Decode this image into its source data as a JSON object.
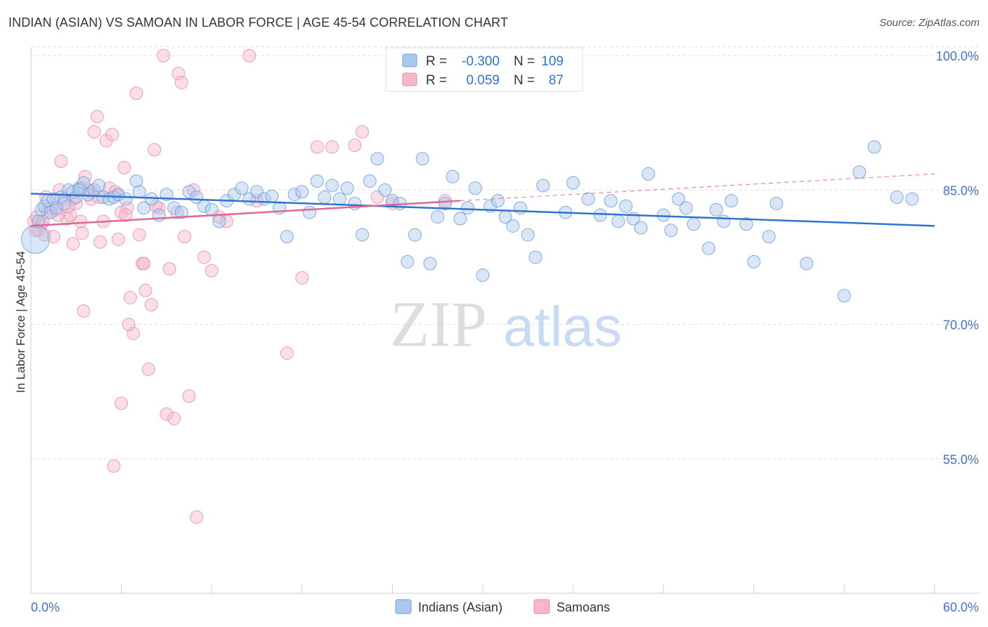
{
  "title": "INDIAN (ASIAN) VS SAMOAN IN LABOR FORCE | AGE 45-54 CORRELATION CHART",
  "source": "Source: ZipAtlas.com",
  "watermark": {
    "zip": "ZIP",
    "atlas": "atlas"
  },
  "colors": {
    "blue_fill": "#a9c8f0",
    "blue_stroke": "#6f9fd8",
    "blue_line": "#2f74d0",
    "pink_fill": "#f7b6cb",
    "pink_stroke": "#e68aa8",
    "pink_line": "#e06890",
    "axis_text": "#4472c4"
  },
  "legend": {
    "rows": [
      {
        "r_label": "R =",
        "r_value": "-0.300",
        "n_label": "N =",
        "n_value": "109"
      },
      {
        "r_label": "R =",
        "r_value": "0.059",
        "n_label": "N =",
        "n_value": "87"
      }
    ]
  },
  "chart_data": {
    "type": "scatter",
    "title": "INDIAN (ASIAN) VS SAMOAN IN LABOR FORCE | AGE 45-54 CORRELATION CHART",
    "xlabel": "",
    "ylabel": "In Labor Force | Age 45-54",
    "xlim": [
      0,
      60
    ],
    "ylim": [
      40,
      101.5
    ],
    "x_tick_labels": [
      "0.0%",
      "60.0%"
    ],
    "y_tick_labels": [
      "100.0%",
      "85.0%",
      "70.0%",
      "55.0%"
    ],
    "y_ticks": [
      100,
      85,
      70,
      55
    ],
    "grid": true,
    "legend_position": "bottom",
    "series": [
      {
        "name": "Indians (Asian)",
        "color": "#a9c8f0",
        "trend": {
          "x": [
            0,
            60
          ],
          "y": [
            84.6,
            81.0
          ]
        },
        "points": [
          [
            0.3,
            79.5
          ],
          [
            0.5,
            81.5
          ],
          [
            0.7,
            82.8
          ],
          [
            0.9,
            83.2
          ],
          [
            1.1,
            83.8
          ],
          [
            1.3,
            82.5
          ],
          [
            1.5,
            84.0
          ],
          [
            1.7,
            83.0
          ],
          [
            2.0,
            84.2
          ],
          [
            2.2,
            83.5
          ],
          [
            2.5,
            85.0
          ],
          [
            2.8,
            84.8
          ],
          [
            3.0,
            84.2
          ],
          [
            3.3,
            85.2
          ],
          [
            3.5,
            85.8
          ],
          [
            3.8,
            84.5
          ],
          [
            4.2,
            85.0
          ],
          [
            4.5,
            85.5
          ],
          [
            4.8,
            84.2
          ],
          [
            5.2,
            84.0
          ],
          [
            5.5,
            84.2
          ],
          [
            5.8,
            84.5
          ],
          [
            6.3,
            84.0
          ],
          [
            7.0,
            86.0
          ],
          [
            7.2,
            84.8
          ],
          [
            7.5,
            83.0
          ],
          [
            8.0,
            84.0
          ],
          [
            8.5,
            82.2
          ],
          [
            9.0,
            84.5
          ],
          [
            9.5,
            83.0
          ],
          [
            10.0,
            82.5
          ],
          [
            10.5,
            84.8
          ],
          [
            11.0,
            84.2
          ],
          [
            11.5,
            83.2
          ],
          [
            12.0,
            82.8
          ],
          [
            12.5,
            81.5
          ],
          [
            13.0,
            83.8
          ],
          [
            13.5,
            84.5
          ],
          [
            14.0,
            85.2
          ],
          [
            14.5,
            84.0
          ],
          [
            15.0,
            84.8
          ],
          [
            15.5,
            84.0
          ],
          [
            16.0,
            84.3
          ],
          [
            16.5,
            83.0
          ],
          [
            17.0,
            79.8
          ],
          [
            17.5,
            84.5
          ],
          [
            18.0,
            84.8
          ],
          [
            18.5,
            82.5
          ],
          [
            19.0,
            86.0
          ],
          [
            19.5,
            84.2
          ],
          [
            20.0,
            85.5
          ],
          [
            20.5,
            84.0
          ],
          [
            21.0,
            85.2
          ],
          [
            21.5,
            83.5
          ],
          [
            22.0,
            80.0
          ],
          [
            22.5,
            86.0
          ],
          [
            23.0,
            88.5
          ],
          [
            23.5,
            85.0
          ],
          [
            24.0,
            83.8
          ],
          [
            24.5,
            83.5
          ],
          [
            25.0,
            77.0
          ],
          [
            25.5,
            80.0
          ],
          [
            26.0,
            88.5
          ],
          [
            26.5,
            76.8
          ],
          [
            27.0,
            82.0
          ],
          [
            27.5,
            83.5
          ],
          [
            28.0,
            86.5
          ],
          [
            28.5,
            81.8
          ],
          [
            29.0,
            83.0
          ],
          [
            29.5,
            85.2
          ],
          [
            30.0,
            75.5
          ],
          [
            30.5,
            83.2
          ],
          [
            31.0,
            83.8
          ],
          [
            31.5,
            82.0
          ],
          [
            32.0,
            81.0
          ],
          [
            32.5,
            83.0
          ],
          [
            33.0,
            80.0
          ],
          [
            33.5,
            77.5
          ],
          [
            34.0,
            85.5
          ],
          [
            35.5,
            82.5
          ],
          [
            36.0,
            85.8
          ],
          [
            37.0,
            84.0
          ],
          [
            37.8,
            82.2
          ],
          [
            38.5,
            83.8
          ],
          [
            39.0,
            81.5
          ],
          [
            39.5,
            83.2
          ],
          [
            40.0,
            81.8
          ],
          [
            40.5,
            80.8
          ],
          [
            41.0,
            86.8
          ],
          [
            42.0,
            82.2
          ],
          [
            42.5,
            80.5
          ],
          [
            43.0,
            84.0
          ],
          [
            43.5,
            83.0
          ],
          [
            44.0,
            81.2
          ],
          [
            45.0,
            78.5
          ],
          [
            45.5,
            82.8
          ],
          [
            46.0,
            81.5
          ],
          [
            46.5,
            83.8
          ],
          [
            47.5,
            81.2
          ],
          [
            48.0,
            77.0
          ],
          [
            49.0,
            79.8
          ],
          [
            49.5,
            83.5
          ],
          [
            51.5,
            76.8
          ],
          [
            54.0,
            73.2
          ],
          [
            55.0,
            87.0
          ],
          [
            56.0,
            89.8
          ],
          [
            57.5,
            84.2
          ],
          [
            58.5,
            84.0
          ],
          [
            3.2,
            85.0
          ]
        ]
      },
      {
        "name": "Samoans",
        "color": "#f7b6cb",
        "trend": {
          "x": [
            0,
            28.5
          ],
          "y": [
            81.0,
            83.8
          ]
        },
        "trend_dashed": {
          "x": [
            28.5,
            60
          ],
          "y": [
            83.8,
            86.8
          ]
        },
        "points": [
          [
            0.2,
            81.5
          ],
          [
            0.4,
            82.0
          ],
          [
            0.5,
            80.5
          ],
          [
            0.7,
            81.2
          ],
          [
            0.9,
            80.0
          ],
          [
            1.1,
            82.5
          ],
          [
            1.3,
            83.0
          ],
          [
            1.5,
            79.8
          ],
          [
            1.7,
            82.8
          ],
          [
            1.9,
            85.0
          ],
          [
            2.0,
            88.2
          ],
          [
            2.2,
            84.0
          ],
          [
            2.4,
            81.8
          ],
          [
            2.6,
            82.2
          ],
          [
            2.8,
            79.0
          ],
          [
            3.0,
            83.5
          ],
          [
            3.2,
            85.2
          ],
          [
            3.4,
            80.2
          ],
          [
            3.6,
            86.5
          ],
          [
            3.8,
            85.0
          ],
          [
            4.0,
            84.0
          ],
          [
            4.2,
            91.5
          ],
          [
            4.4,
            93.2
          ],
          [
            4.6,
            79.2
          ],
          [
            4.8,
            81.5
          ],
          [
            5.0,
            90.5
          ],
          [
            5.2,
            85.2
          ],
          [
            5.4,
            91.2
          ],
          [
            5.6,
            84.8
          ],
          [
            5.8,
            84.5
          ],
          [
            6.0,
            82.5
          ],
          [
            6.2,
            87.5
          ],
          [
            6.4,
            83.0
          ],
          [
            6.6,
            73.0
          ],
          [
            6.8,
            69.0
          ],
          [
            7.0,
            95.8
          ],
          [
            7.2,
            80.0
          ],
          [
            7.4,
            76.8
          ],
          [
            7.6,
            73.8
          ],
          [
            7.8,
            65.0
          ],
          [
            8.0,
            72.2
          ],
          [
            8.2,
            89.5
          ],
          [
            8.5,
            83.0
          ],
          [
            8.8,
            100.0
          ],
          [
            9.0,
            60.0
          ],
          [
            9.2,
            76.2
          ],
          [
            9.5,
            59.5
          ],
          [
            9.8,
            98.0
          ],
          [
            10.0,
            97.0
          ],
          [
            10.2,
            79.8
          ],
          [
            10.5,
            62.0
          ],
          [
            10.8,
            85.0
          ],
          [
            11.0,
            48.5
          ],
          [
            11.5,
            77.5
          ],
          [
            12.0,
            76.0
          ],
          [
            12.5,
            82.0
          ],
          [
            13.0,
            81.5
          ],
          [
            14.5,
            100.0
          ],
          [
            15.0,
            83.8
          ],
          [
            17.0,
            66.8
          ],
          [
            18.0,
            75.2
          ],
          [
            19.0,
            89.8
          ],
          [
            20.0,
            89.8
          ],
          [
            21.5,
            90.0
          ],
          [
            22.0,
            91.5
          ],
          [
            23.0,
            84.2
          ],
          [
            24.0,
            83.5
          ],
          [
            27.5,
            83.8
          ],
          [
            28.5,
            100.0
          ],
          [
            3.5,
            71.5
          ],
          [
            5.5,
            54.2
          ],
          [
            6.0,
            61.2
          ],
          [
            6.5,
            70.0
          ],
          [
            4.0,
            84.8
          ],
          [
            2.8,
            84.0
          ],
          [
            1.0,
            84.2
          ],
          [
            0.8,
            81.5
          ],
          [
            0.3,
            80.5
          ],
          [
            1.8,
            82.2
          ],
          [
            3.3,
            81.5
          ],
          [
            2.5,
            83.2
          ],
          [
            4.5,
            84.2
          ],
          [
            5.8,
            79.5
          ],
          [
            6.3,
            82.2
          ],
          [
            7.5,
            76.8
          ],
          [
            8.3,
            83.2
          ],
          [
            9.7,
            82.5
          ]
        ]
      }
    ]
  },
  "bottom_legend": [
    {
      "label": "Indians (Asian)"
    },
    {
      "label": "Samoans"
    }
  ]
}
